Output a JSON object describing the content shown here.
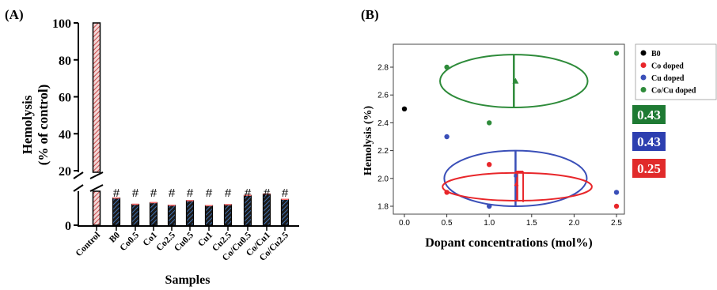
{
  "colors": {
    "axis": "#000000",
    "bar_stroke": "#000000",
    "hatch_blue": "#3a6fc2",
    "hatch_red": "#c94a4a",
    "b0": "#000000",
    "co": "#e8262a",
    "cu": "#3a4fb8",
    "cocu": "#2e8b3a",
    "badge_green": "#1e7a33",
    "badge_blue": "#2d3fb0",
    "badge_red": "#e12b2b"
  },
  "panel_a": {
    "label": "(A)",
    "ylabel_line1": "Hemolysis",
    "ylabel_line2": "(% of control)",
    "xlabel": "Samples",
    "sig_mark": "#"
  },
  "panel_b": {
    "label": "(B)",
    "ylabel": "Hemolysis (%)",
    "xlabel": "Dopant concentrations (mol%)",
    "legend": [
      "B0",
      "Co doped",
      "Cu doped",
      "Co/Cu doped"
    ],
    "badges": [
      "0.43",
      "0.43",
      "0.25"
    ]
  },
  "chart_data": [
    {
      "type": "bar",
      "title": "",
      "xlabel": "Samples",
      "ylabel": "Hemolysis (% of control)",
      "ylim": [
        0,
        100
      ],
      "axis_break": [
        10,
        20
      ],
      "yticks": [
        0,
        20,
        40,
        60,
        80,
        100
      ],
      "categories": [
        "Control",
        "B0",
        "Co0.5",
        "Co1",
        "Co2.5",
        "Cu0.5",
        "Cu1",
        "Cu2.5",
        "Co/Cu0.5",
        "Co/Cu1",
        "Co/Cu2.5"
      ],
      "values": [
        100,
        8.2,
        6.3,
        6.8,
        6.0,
        7.4,
        5.9,
        6.2,
        9.0,
        9.4,
        7.8
      ],
      "significance": [
        "",
        "#",
        "#",
        "#",
        "#",
        "#",
        "#",
        "#",
        "#",
        "#",
        "#"
      ]
    },
    {
      "type": "scatter",
      "title": "",
      "xlabel": "Dopant concentrations (mol%)",
      "ylabel": "Hemolysis (%)",
      "xlim": [
        -0.1,
        2.65
      ],
      "ylim": [
        1.72,
        2.93
      ],
      "xticks": [
        0.0,
        0.5,
        1.0,
        1.5,
        2.0,
        2.5
      ],
      "yticks": [
        1.8,
        2.0,
        2.2,
        2.4,
        2.6,
        2.8
      ],
      "legend_position": "right",
      "series": [
        {
          "name": "B0",
          "x": [
            0.0
          ],
          "y": [
            2.5
          ]
        },
        {
          "name": "Co doped",
          "x": [
            0.5,
            1.0,
            2.5
          ],
          "y": [
            1.9,
            2.1,
            1.8
          ]
        },
        {
          "name": "Cu doped",
          "x": [
            0.5,
            1.0,
            2.5
          ],
          "y": [
            2.3,
            1.8,
            1.9
          ]
        },
        {
          "name": "Co/Cu doped",
          "x": [
            0.5,
            1.0,
            2.5
          ],
          "y": [
            2.8,
            2.4,
            2.9
          ]
        }
      ],
      "ellipses": [
        {
          "series": "Co/Cu doped",
          "cx": 1.29,
          "cy": 2.7,
          "rx": 0.87,
          "ry": 0.19
        },
        {
          "series": "Cu doped",
          "cx": 1.31,
          "cy": 2.0,
          "rx": 0.84,
          "ry": 0.2
        },
        {
          "series": "Co doped",
          "cx": 1.33,
          "cy": 1.94,
          "rx": 0.88,
          "ry": 0.1
        }
      ],
      "badges": [
        "0.43",
        "0.43",
        "0.25"
      ]
    }
  ]
}
